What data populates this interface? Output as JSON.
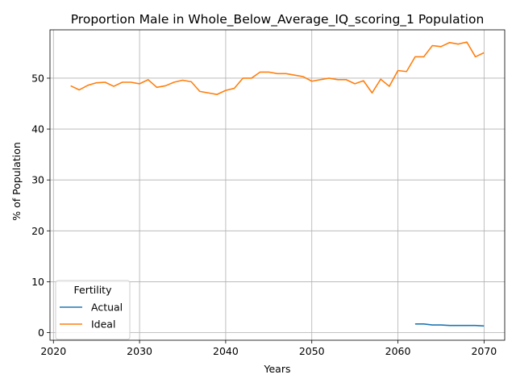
{
  "chart_data": {
    "type": "line",
    "title": "Proportion Male in Whole_Below_Average_IQ_scoring_1 Population",
    "xlabel": "Years",
    "ylabel": "% of Population",
    "xlim": [
      2019.6,
      2072.4
    ],
    "ylim": [
      -1.5,
      59.5
    ],
    "xticks": [
      "2020",
      "2030",
      "2040",
      "2050",
      "2060",
      "2070"
    ],
    "yticks": [
      "0",
      "10",
      "20",
      "30",
      "40",
      "50"
    ],
    "grid": true,
    "legend": {
      "title": "Fertility",
      "placement": "lower-left"
    },
    "colors": {
      "Actual": "#1f77b4",
      "Ideal": "#ff7f0e"
    },
    "series": [
      {
        "name": "Actual",
        "x": [
          2062,
          2063,
          2064,
          2065,
          2066,
          2067,
          2068,
          2069,
          2070
        ],
        "y": [
          1.7,
          1.7,
          1.5,
          1.5,
          1.4,
          1.4,
          1.4,
          1.4,
          1.3
        ]
      },
      {
        "name": "Ideal",
        "x": [
          2022,
          2023,
          2024,
          2025,
          2026,
          2027,
          2028,
          2029,
          2030,
          2031,
          2032,
          2033,
          2034,
          2035,
          2036,
          2037,
          2038,
          2039,
          2040,
          2041,
          2042,
          2043,
          2044,
          2045,
          2046,
          2047,
          2048,
          2049,
          2050,
          2051,
          2052,
          2053,
          2054,
          2055,
          2056,
          2057,
          2058,
          2059,
          2060,
          2061,
          2062,
          2063,
          2064,
          2065,
          2066,
          2067,
          2068,
          2069,
          2070
        ],
        "y": [
          48.5,
          47.7,
          48.6,
          49.1,
          49.2,
          48.4,
          49.2,
          49.2,
          48.9,
          49.7,
          48.2,
          48.5,
          49.2,
          49.6,
          49.3,
          47.4,
          47.1,
          46.8,
          47.6,
          48.0,
          50.0,
          50.0,
          51.2,
          51.2,
          50.9,
          50.9,
          50.6,
          50.3,
          49.4,
          49.7,
          50.0,
          49.7,
          49.7,
          48.9,
          49.5,
          47.1,
          49.8,
          48.4,
          51.5,
          51.3,
          54.2,
          54.2,
          56.4,
          56.2,
          57.0,
          56.7,
          57.1,
          54.2,
          55.0
        ]
      }
    ]
  }
}
